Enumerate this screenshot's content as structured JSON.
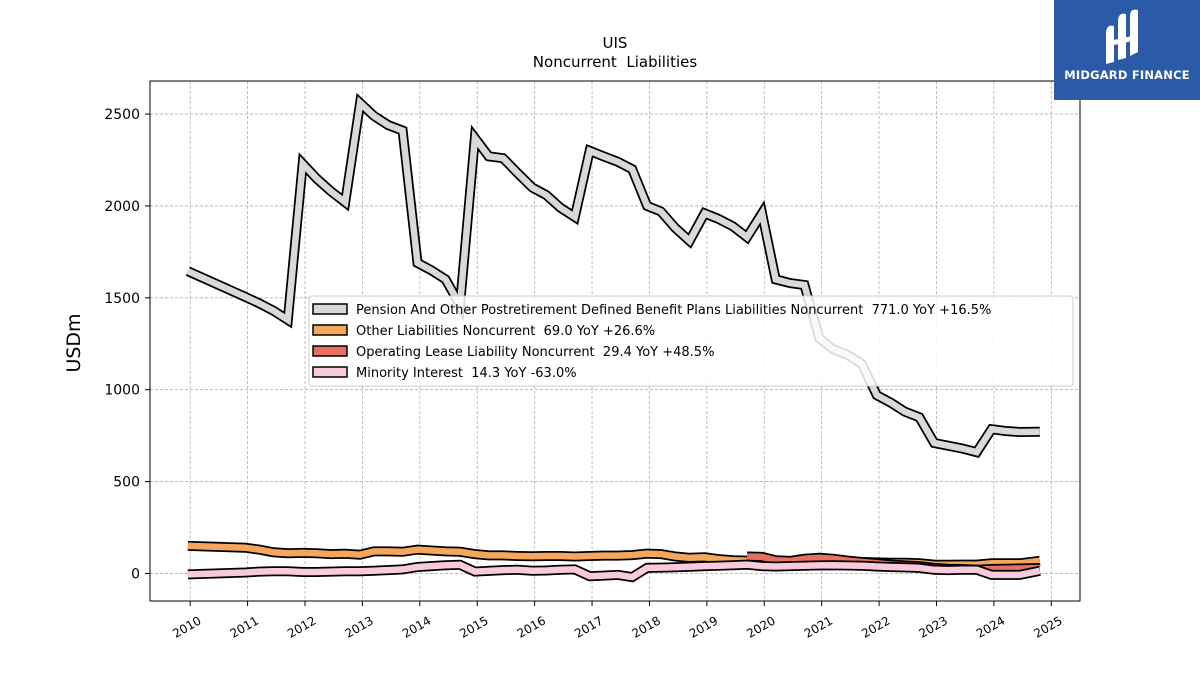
{
  "logo": {
    "text": "MIDGARD FINANCE",
    "background": "#2a5aa8"
  },
  "chart_data": {
    "type": "line",
    "title": "UIS",
    "subtitle": "Noncurrent  Liabilities",
    "xlabel": "",
    "ylabel": "USDm",
    "xlim": [
      2009.3,
      2025.5
    ],
    "ylim": [
      -150,
      2680
    ],
    "yticks": [
      0,
      500,
      1000,
      1500,
      2000,
      2500
    ],
    "xticks": [
      "2010",
      "2011",
      "2012",
      "2013",
      "2014",
      "2015",
      "2016",
      "2017",
      "2018",
      "2019",
      "2020",
      "2021",
      "2022",
      "2023",
      "2024",
      "2025"
    ],
    "grid": true,
    "legend_position": "center-right",
    "series": [
      {
        "name": "Pension And Other Postretirement Defined Benefit Plans Liabilities Noncurrent  771.0 YoY +16.5%",
        "color": "#d9d9d9",
        "points": [
          [
            2009.96,
            1645
          ],
          [
            2010.96,
            1505
          ],
          [
            2011.2,
            1470
          ],
          [
            2011.45,
            1430
          ],
          [
            2011.7,
            1380
          ],
          [
            2011.96,
            2230
          ],
          [
            2012.2,
            2150
          ],
          [
            2012.45,
            2080
          ],
          [
            2012.7,
            2020
          ],
          [
            2012.96,
            2560
          ],
          [
            2013.2,
            2490
          ],
          [
            2013.45,
            2440
          ],
          [
            2013.7,
            2410
          ],
          [
            2013.96,
            1690
          ],
          [
            2014.2,
            1650
          ],
          [
            2014.45,
            1600
          ],
          [
            2014.7,
            1460
          ],
          [
            2014.96,
            2370
          ],
          [
            2015.2,
            2270
          ],
          [
            2015.45,
            2260
          ],
          [
            2015.7,
            2180
          ],
          [
            2015.96,
            2100
          ],
          [
            2016.2,
            2060
          ],
          [
            2016.45,
            1990
          ],
          [
            2016.7,
            1940
          ],
          [
            2016.96,
            2300
          ],
          [
            2017.2,
            2270
          ],
          [
            2017.45,
            2240
          ],
          [
            2017.7,
            2200
          ],
          [
            2017.96,
            2000
          ],
          [
            2018.2,
            1970
          ],
          [
            2018.45,
            1880
          ],
          [
            2018.7,
            1810
          ],
          [
            2018.96,
            1960
          ],
          [
            2019.2,
            1930
          ],
          [
            2019.45,
            1890
          ],
          [
            2019.7,
            1830
          ],
          [
            2019.96,
            1960
          ],
          [
            2020.2,
            1600
          ],
          [
            2020.45,
            1580
          ],
          [
            2020.7,
            1570
          ],
          [
            2020.96,
            1280
          ],
          [
            2021.2,
            1220
          ],
          [
            2021.45,
            1190
          ],
          [
            2021.7,
            1140
          ],
          [
            2021.96,
            970
          ],
          [
            2022.2,
            930
          ],
          [
            2022.45,
            880
          ],
          [
            2022.7,
            850
          ],
          [
            2022.96,
            710
          ],
          [
            2023.2,
            695
          ],
          [
            2023.45,
            680
          ],
          [
            2023.7,
            660
          ],
          [
            2023.96,
            785
          ],
          [
            2024.2,
            775
          ],
          [
            2024.45,
            770
          ],
          [
            2024.8,
            771
          ]
        ]
      },
      {
        "name": "Other Liabilities Noncurrent  69.0 YoY +26.6%",
        "color": "#f4a65c",
        "points": [
          [
            2009.96,
            150
          ],
          [
            2010.96,
            140
          ],
          [
            2011.2,
            130
          ],
          [
            2011.45,
            115
          ],
          [
            2011.7,
            110
          ],
          [
            2011.96,
            112
          ],
          [
            2012.2,
            110
          ],
          [
            2012.45,
            105
          ],
          [
            2012.7,
            107
          ],
          [
            2012.96,
            102
          ],
          [
            2013.2,
            120
          ],
          [
            2013.45,
            120
          ],
          [
            2013.7,
            118
          ],
          [
            2013.96,
            130
          ],
          [
            2014.2,
            125
          ],
          [
            2014.45,
            120
          ],
          [
            2014.7,
            118
          ],
          [
            2014.96,
            105
          ],
          [
            2015.2,
            98
          ],
          [
            2015.45,
            98
          ],
          [
            2015.7,
            95
          ],
          [
            2015.96,
            93
          ],
          [
            2016.2,
            95
          ],
          [
            2016.45,
            95
          ],
          [
            2016.7,
            92
          ],
          [
            2016.96,
            95
          ],
          [
            2017.2,
            97
          ],
          [
            2017.45,
            97
          ],
          [
            2017.7,
            100
          ],
          [
            2017.96,
            108
          ],
          [
            2018.2,
            105
          ],
          [
            2018.45,
            92
          ],
          [
            2018.7,
            85
          ],
          [
            2018.96,
            88
          ],
          [
            2019.2,
            78
          ],
          [
            2019.45,
            72
          ],
          [
            2019.7,
            70
          ],
          [
            2019.96,
            70
          ],
          [
            2020.2,
            68
          ],
          [
            2020.45,
            65
          ],
          [
            2020.7,
            65
          ],
          [
            2020.96,
            70
          ],
          [
            2021.2,
            68
          ],
          [
            2021.45,
            66
          ],
          [
            2021.7,
            62
          ],
          [
            2021.96,
            60
          ],
          [
            2022.2,
            58
          ],
          [
            2022.45,
            58
          ],
          [
            2022.7,
            55
          ],
          [
            2022.96,
            48
          ],
          [
            2023.2,
            47
          ],
          [
            2023.45,
            48
          ],
          [
            2023.7,
            48
          ],
          [
            2023.96,
            55
          ],
          [
            2024.2,
            55
          ],
          [
            2024.45,
            55
          ],
          [
            2024.8,
            69
          ]
        ]
      },
      {
        "name": "Operating Lease Liability Noncurrent  29.4 YoY +48.5%",
        "color": "#e87060",
        "points": [
          [
            2019.7,
            92
          ],
          [
            2019.96,
            90
          ],
          [
            2020.2,
            72
          ],
          [
            2020.45,
            68
          ],
          [
            2020.7,
            80
          ],
          [
            2020.96,
            85
          ],
          [
            2021.2,
            80
          ],
          [
            2021.45,
            70
          ],
          [
            2021.7,
            62
          ],
          [
            2021.96,
            55
          ],
          [
            2022.2,
            48
          ],
          [
            2022.45,
            44
          ],
          [
            2022.7,
            40
          ],
          [
            2022.96,
            30
          ],
          [
            2023.2,
            26
          ],
          [
            2023.45,
            24
          ],
          [
            2023.7,
            20
          ],
          [
            2023.96,
            24
          ],
          [
            2024.2,
            26
          ],
          [
            2024.45,
            27
          ],
          [
            2024.8,
            29.4
          ]
        ]
      },
      {
        "name": "Minority Interest  14.3 YoY -63.0%",
        "color": "#f9c9dc",
        "points": [
          [
            2009.96,
            -5
          ],
          [
            2010.96,
            5
          ],
          [
            2011.2,
            10
          ],
          [
            2011.45,
            12
          ],
          [
            2011.7,
            12
          ],
          [
            2011.96,
            8
          ],
          [
            2012.2,
            8
          ],
          [
            2012.45,
            10
          ],
          [
            2012.7,
            12
          ],
          [
            2012.96,
            12
          ],
          [
            2013.2,
            15
          ],
          [
            2013.45,
            18
          ],
          [
            2013.7,
            22
          ],
          [
            2013.96,
            35
          ],
          [
            2014.2,
            40
          ],
          [
            2014.45,
            45
          ],
          [
            2014.7,
            47
          ],
          [
            2014.96,
            10
          ],
          [
            2015.2,
            14
          ],
          [
            2015.45,
            18
          ],
          [
            2015.7,
            20
          ],
          [
            2015.96,
            15
          ],
          [
            2016.2,
            16
          ],
          [
            2016.45,
            20
          ],
          [
            2016.7,
            22
          ],
          [
            2016.96,
            -15
          ],
          [
            2017.2,
            -12
          ],
          [
            2017.45,
            -8
          ],
          [
            2017.7,
            -20
          ],
          [
            2017.96,
            30
          ],
          [
            2018.2,
            32
          ],
          [
            2018.45,
            34
          ],
          [
            2018.7,
            36
          ],
          [
            2018.96,
            40
          ],
          [
            2019.2,
            42
          ],
          [
            2019.45,
            45
          ],
          [
            2019.7,
            48
          ],
          [
            2019.96,
            40
          ],
          [
            2020.2,
            38
          ],
          [
            2020.45,
            40
          ],
          [
            2020.7,
            42
          ],
          [
            2020.96,
            44
          ],
          [
            2021.2,
            45
          ],
          [
            2021.45,
            43
          ],
          [
            2021.7,
            42
          ],
          [
            2021.96,
            38
          ],
          [
            2022.2,
            35
          ],
          [
            2022.45,
            33
          ],
          [
            2022.7,
            30
          ],
          [
            2022.96,
            20
          ],
          [
            2023.2,
            18
          ],
          [
            2023.45,
            20
          ],
          [
            2023.7,
            20
          ],
          [
            2023.96,
            -8
          ],
          [
            2024.2,
            -8
          ],
          [
            2024.45,
            -8
          ],
          [
            2024.8,
            14.3
          ]
        ]
      }
    ]
  }
}
